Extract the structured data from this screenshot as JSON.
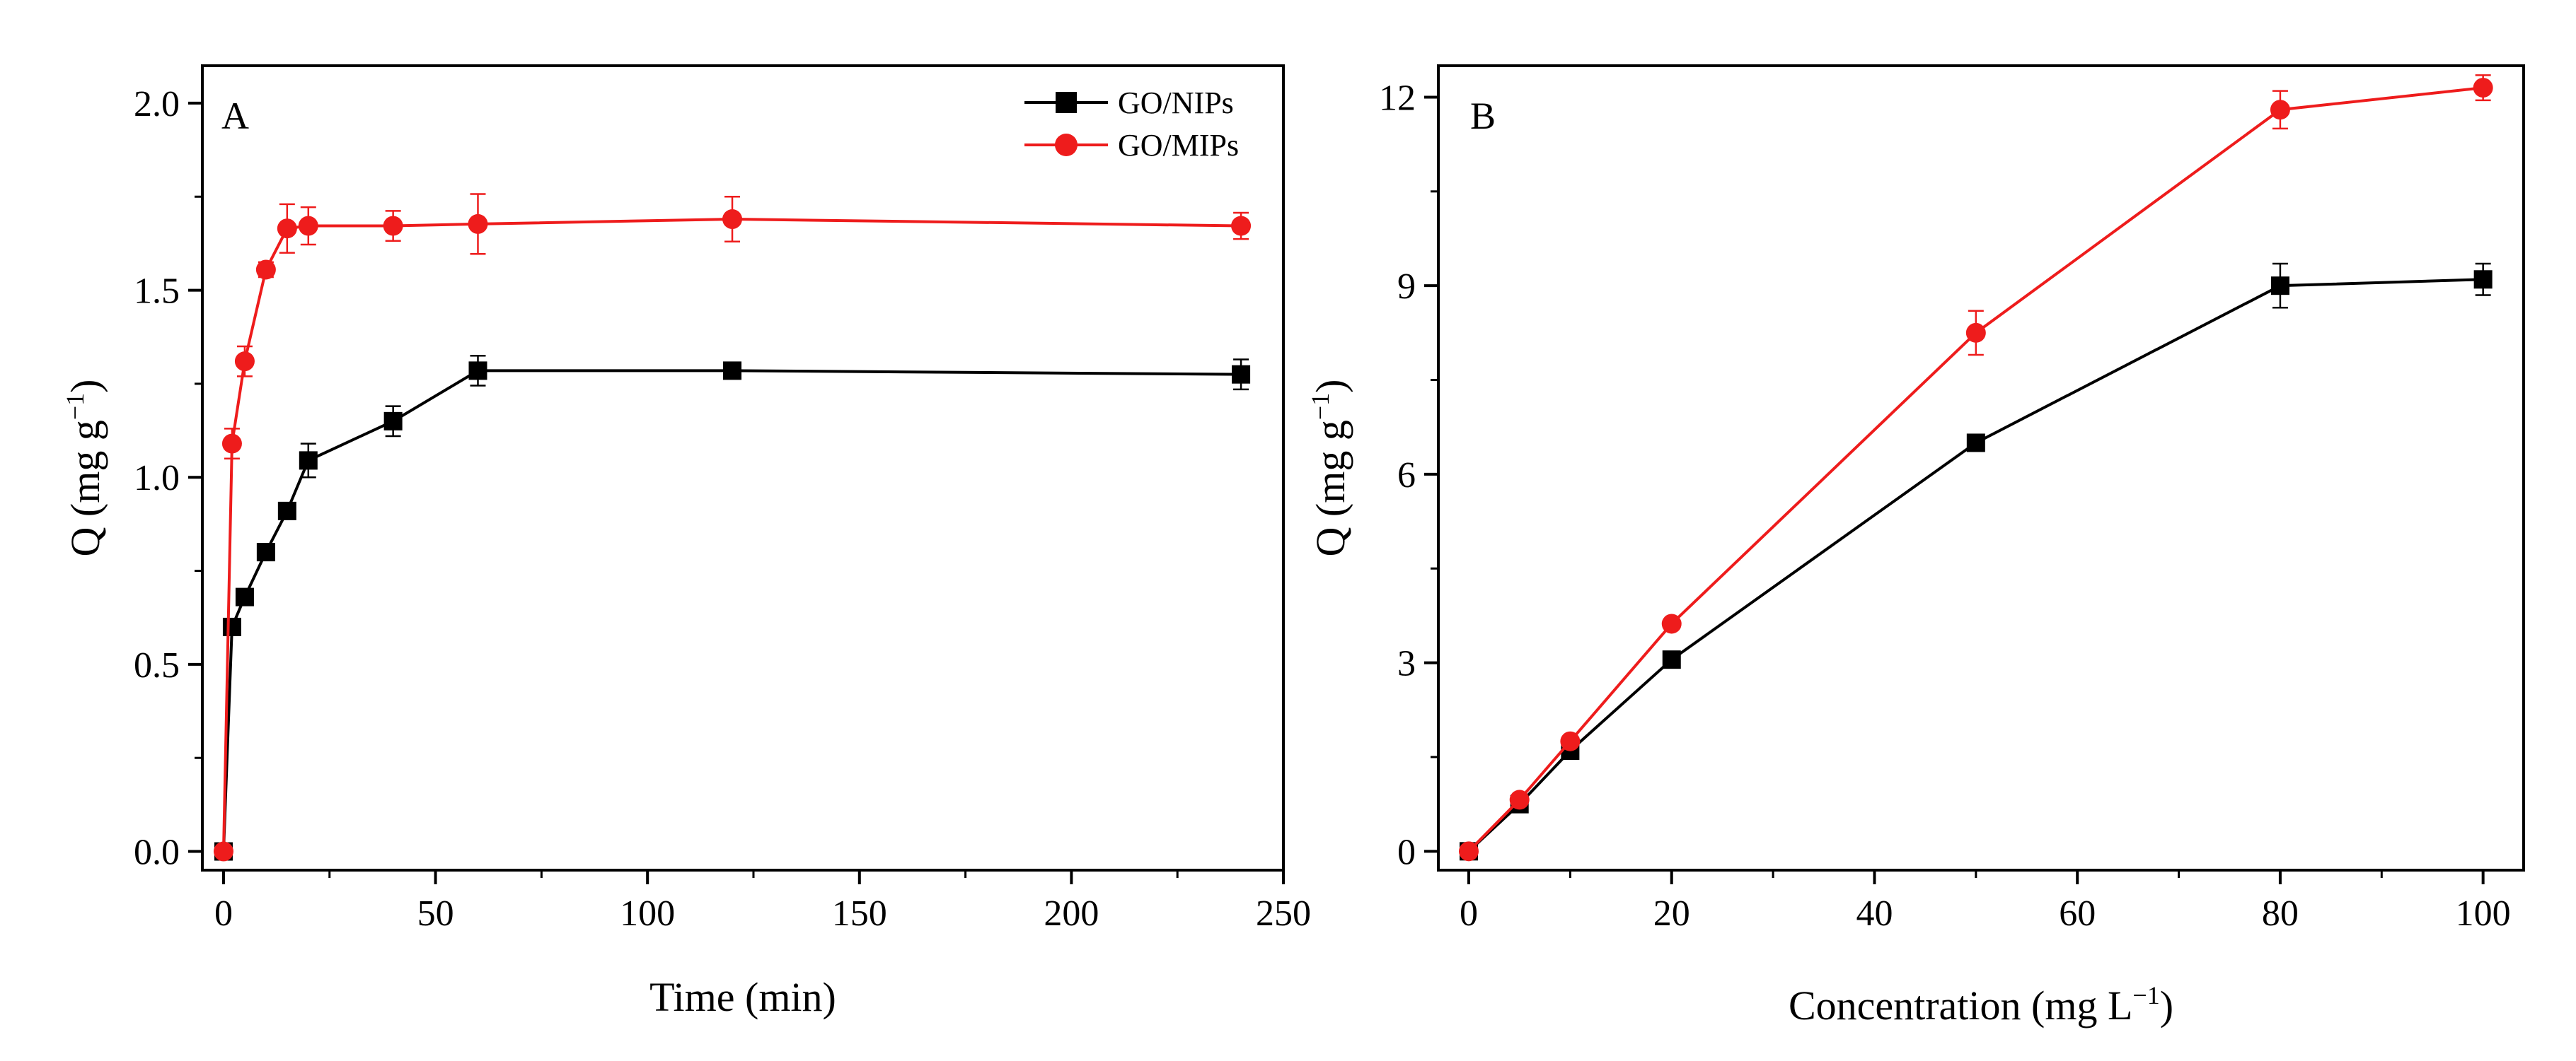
{
  "chart_data": [
    {
      "type": "line",
      "panel_label": "A",
      "xlabel": "Time (min)",
      "ylabel": {
        "text": "Q (mg g",
        "sup": "−1",
        "close": ")"
      },
      "xlim": [
        -5,
        250
      ],
      "ylim": [
        -0.05,
        2.1
      ],
      "xticks": [
        0,
        50,
        100,
        150,
        200,
        250
      ],
      "yticks": [
        0.0,
        0.5,
        1.0,
        1.5,
        2.0
      ],
      "xtick_labels": [
        "0",
        "50",
        "100",
        "150",
        "200",
        "250"
      ],
      "ytick_labels": [
        "0.0",
        "0.5",
        "1.0",
        "1.5",
        "2.0"
      ],
      "legend_position": "top-right",
      "series": [
        {
          "name": "GO/NIPs",
          "color": "#000000",
          "marker": "square",
          "x": [
            0,
            2,
            5,
            10,
            15,
            20,
            40,
            60,
            120,
            240
          ],
          "y": [
            0.0,
            0.6,
            0.68,
            0.8,
            0.91,
            1.045,
            1.15,
            1.285,
            1.285,
            1.275
          ],
          "err": [
            0,
            0,
            0,
            0,
            0,
            0.045,
            0.04,
            0.04,
            0.01,
            0.04
          ]
        },
        {
          "name": "GO/MIPs",
          "color": "#ee1c1c",
          "marker": "circle",
          "x": [
            0,
            2,
            5,
            10,
            15,
            20,
            40,
            60,
            120,
            240
          ],
          "y": [
            0.0,
            1.09,
            1.31,
            1.555,
            1.665,
            1.672,
            1.672,
            1.677,
            1.69,
            1.672
          ],
          "err": [
            0,
            0.04,
            0.04,
            0.02,
            0.065,
            0.05,
            0.04,
            0.08,
            0.06,
            0.035
          ]
        }
      ]
    },
    {
      "type": "line",
      "panel_label": "B",
      "xlabel": {
        "text": "Concentration (mg L",
        "sup": "−1",
        "close": ")"
      },
      "ylabel": {
        "text": "Q (mg g",
        "sup": "−1",
        "close": ")"
      },
      "xlim": [
        -3,
        104
      ],
      "ylim": [
        -0.3,
        12.5
      ],
      "xticks": [
        0,
        20,
        40,
        60,
        80,
        100
      ],
      "yticks": [
        0,
        3,
        6,
        9,
        12
      ],
      "xtick_labels": [
        "0",
        "20",
        "40",
        "60",
        "80",
        "100"
      ],
      "ytick_labels": [
        "0",
        "3",
        "6",
        "9",
        "12"
      ],
      "series": [
        {
          "name": "GO/NIPs",
          "color": "#000000",
          "marker": "square",
          "x": [
            0,
            5,
            10,
            20,
            50,
            80,
            100
          ],
          "y": [
            0.0,
            0.75,
            1.6,
            3.05,
            6.5,
            9.0,
            9.1
          ],
          "err": [
            0,
            0,
            0,
            0,
            0,
            0.35,
            0.25
          ]
        },
        {
          "name": "GO/MIPs",
          "color": "#ee1c1c",
          "marker": "circle",
          "x": [
            0,
            5,
            10,
            20,
            50,
            80,
            100
          ],
          "y": [
            0.0,
            0.82,
            1.75,
            3.62,
            8.25,
            11.8,
            12.15
          ],
          "err": [
            0,
            0,
            0,
            0,
            0.35,
            0.3,
            0.2
          ]
        }
      ]
    }
  ]
}
